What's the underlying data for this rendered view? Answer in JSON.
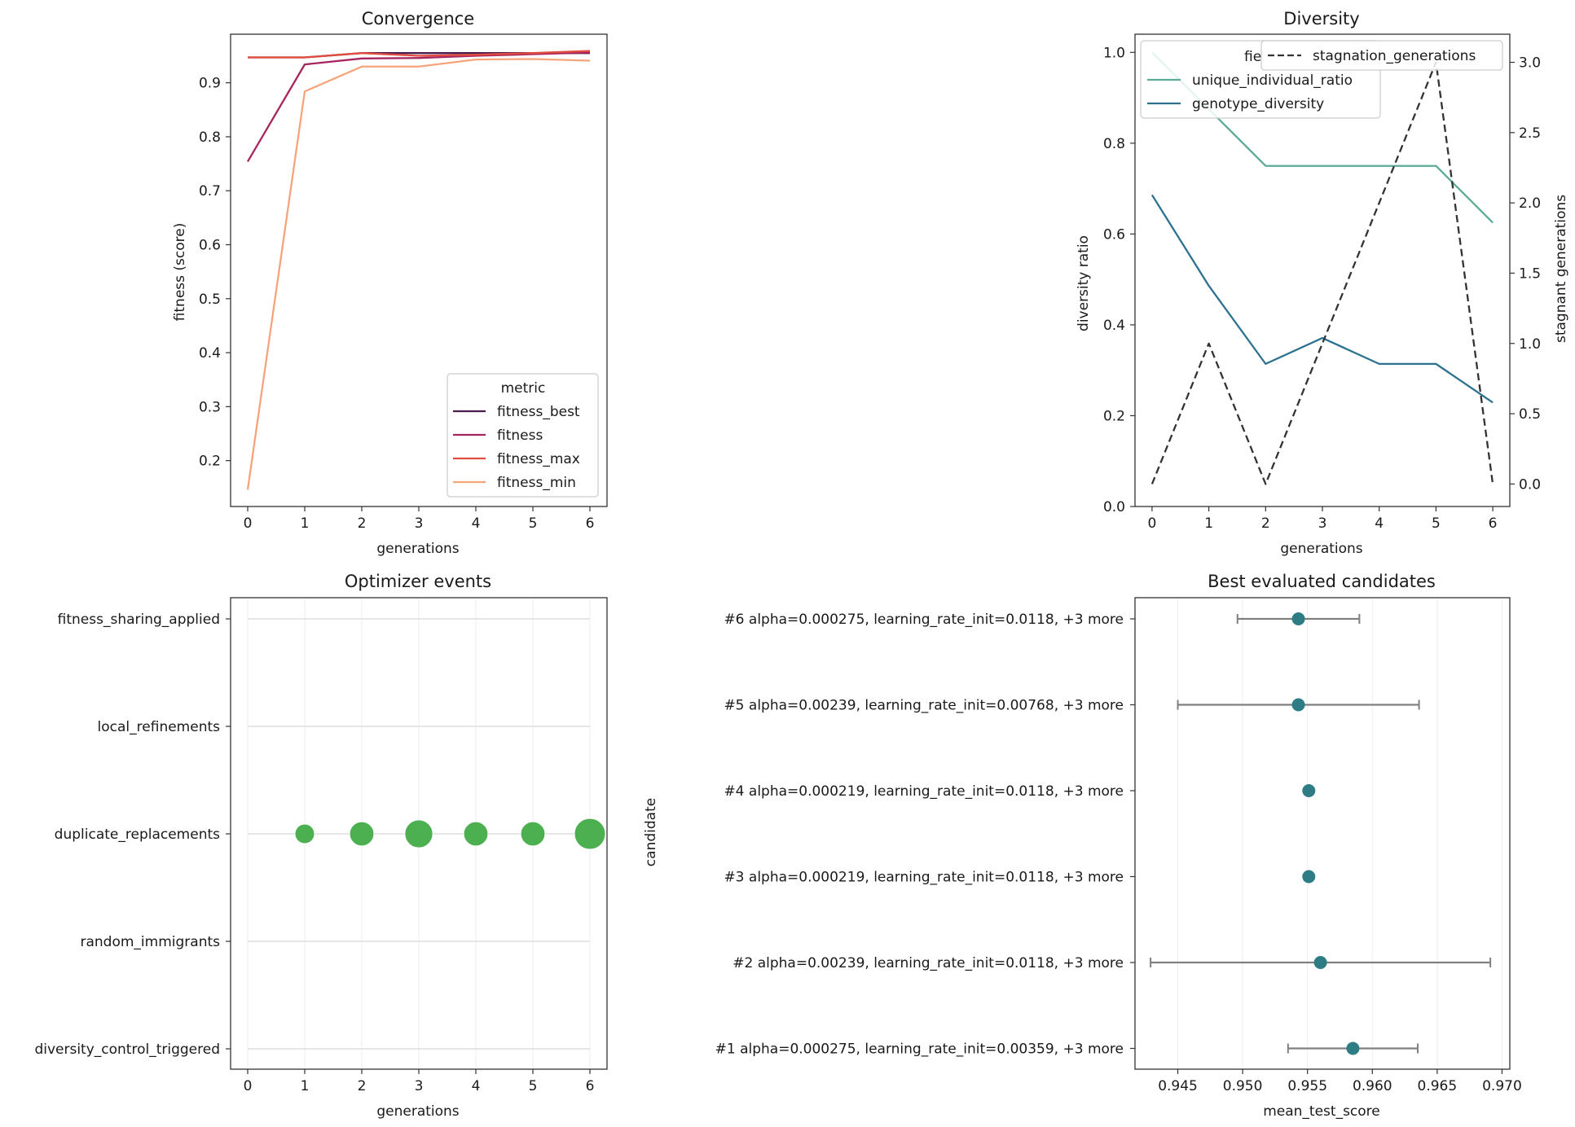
{
  "chart_data": [
    {
      "id": "convergence",
      "type": "line",
      "title": "Convergence",
      "xlabel": "generations",
      "ylabel": "fitness (score)",
      "xlim": [
        -0.3,
        6.3
      ],
      "ylim": [
        0.115,
        0.99
      ],
      "xticks": [
        0,
        1,
        2,
        3,
        4,
        5,
        6
      ],
      "yticks": [
        0.2,
        0.3,
        0.4,
        0.5,
        0.6,
        0.7,
        0.8,
        0.9
      ],
      "legend": {
        "title": "metric",
        "position": "lower right"
      },
      "x": [
        0,
        1,
        2,
        3,
        4,
        5,
        6
      ],
      "series": [
        {
          "name": "fitness_best",
          "color": "#4b1d4f",
          "values": [
            0.947,
            0.947,
            0.955,
            0.955,
            0.955,
            0.955,
            0.955
          ]
        },
        {
          "name": "fitness",
          "color": "#a6255e",
          "values": [
            0.754,
            0.934,
            0.945,
            0.946,
            0.95,
            0.953,
            0.956
          ]
        },
        {
          "name": "fitness_max",
          "color": "#e14d3f",
          "values": [
            0.947,
            0.947,
            0.955,
            0.95,
            0.952,
            0.955,
            0.959
          ]
        },
        {
          "name": "fitness_min",
          "color": "#f6a47c",
          "values": [
            0.146,
            0.884,
            0.93,
            0.93,
            0.943,
            0.944,
            0.941
          ]
        }
      ]
    },
    {
      "id": "diversity",
      "type": "line",
      "title": "Diversity",
      "xlabel": "generations",
      "ylabel": "diversity ratio",
      "ylabel_right": "stagnant generations",
      "xlim": [
        -0.3,
        6.3
      ],
      "ylim": [
        0.0,
        1.04
      ],
      "ylim_right": [
        -0.16,
        3.2
      ],
      "xticks": [
        0,
        1,
        2,
        3,
        4,
        5,
        6
      ],
      "yticks": [
        0.0,
        0.2,
        0.4,
        0.6,
        0.8,
        1.0
      ],
      "yticks_right": [
        0.0,
        0.5,
        1.0,
        1.5,
        2.0,
        2.5,
        3.0
      ],
      "legend": {
        "title": "fie",
        "position": "upper left"
      },
      "legend_right": {
        "position": "upper right"
      },
      "x": [
        0,
        1,
        2,
        3,
        4,
        5,
        6
      ],
      "series": [
        {
          "name": "unique_individual_ratio",
          "color": "#5bab98",
          "axis": "left",
          "values": [
            1.0,
            0.875,
            0.75,
            0.75,
            0.75,
            0.75,
            0.625
          ]
        },
        {
          "name": "genotype_diversity",
          "color": "#2c7290",
          "axis": "left",
          "values": [
            0.686,
            0.486,
            0.314,
            0.371,
            0.314,
            0.314,
            0.229
          ]
        },
        {
          "name": "stagnation_generations",
          "color": "#333333",
          "axis": "right",
          "dashed": true,
          "values": [
            0,
            1,
            0,
            1,
            2,
            3,
            0
          ]
        }
      ]
    },
    {
      "id": "events",
      "type": "scatter",
      "title": "Optimizer events",
      "xlabel": "generations",
      "xlim": [
        -0.3,
        6.3
      ],
      "xticks": [
        0,
        1,
        2,
        3,
        4,
        5,
        6
      ],
      "categories": [
        "fitness_sharing_applied",
        "local_refinements",
        "duplicate_replacements",
        "random_immigrants",
        "diversity_control_triggered"
      ],
      "color": "#4caf50",
      "points": [
        {
          "category": "duplicate_replacements",
          "x": 1,
          "count": 1
        },
        {
          "category": "duplicate_replacements",
          "x": 2,
          "count": 2
        },
        {
          "category": "duplicate_replacements",
          "x": 3,
          "count": 3
        },
        {
          "category": "duplicate_replacements",
          "x": 4,
          "count": 2
        },
        {
          "category": "duplicate_replacements",
          "x": 5,
          "count": 2
        },
        {
          "category": "duplicate_replacements",
          "x": 6,
          "count": 4
        }
      ]
    },
    {
      "id": "candidates",
      "type": "scatter",
      "title": "Best evaluated candidates",
      "xlabel": "mean_test_score",
      "ylabel": "candidate",
      "xlim": [
        0.9417,
        0.9706
      ],
      "xticks": [
        0.945,
        0.95,
        0.955,
        0.96,
        0.965,
        0.97
      ],
      "xtick_labels": [
        "0.945",
        "0.950",
        "0.955",
        "0.960",
        "0.965",
        "0.970"
      ],
      "color": "#2e7d85",
      "error_color": "#808080",
      "candidates": [
        {
          "label": "#6 alpha=0.000275, learning_rate_init=0.0118, +3 more",
          "mean": 0.9543,
          "err": 0.0047
        },
        {
          "label": "#5 alpha=0.00239, learning_rate_init=0.00768, +3 more",
          "mean": 0.9543,
          "err": 0.0093
        },
        {
          "label": "#4 alpha=0.000219, learning_rate_init=0.0118, +3 more",
          "mean": 0.9551,
          "err": 0
        },
        {
          "label": "#3 alpha=0.000219, learning_rate_init=0.0118, +3 more",
          "mean": 0.9551,
          "err": 0
        },
        {
          "label": "#2 alpha=0.00239, learning_rate_init=0.0118, +3 more",
          "mean": 0.956,
          "err": 0.0131
        },
        {
          "label": "#1 alpha=0.000275, learning_rate_init=0.00359, +3 more",
          "mean": 0.9585,
          "err": 0.005
        }
      ]
    }
  ]
}
